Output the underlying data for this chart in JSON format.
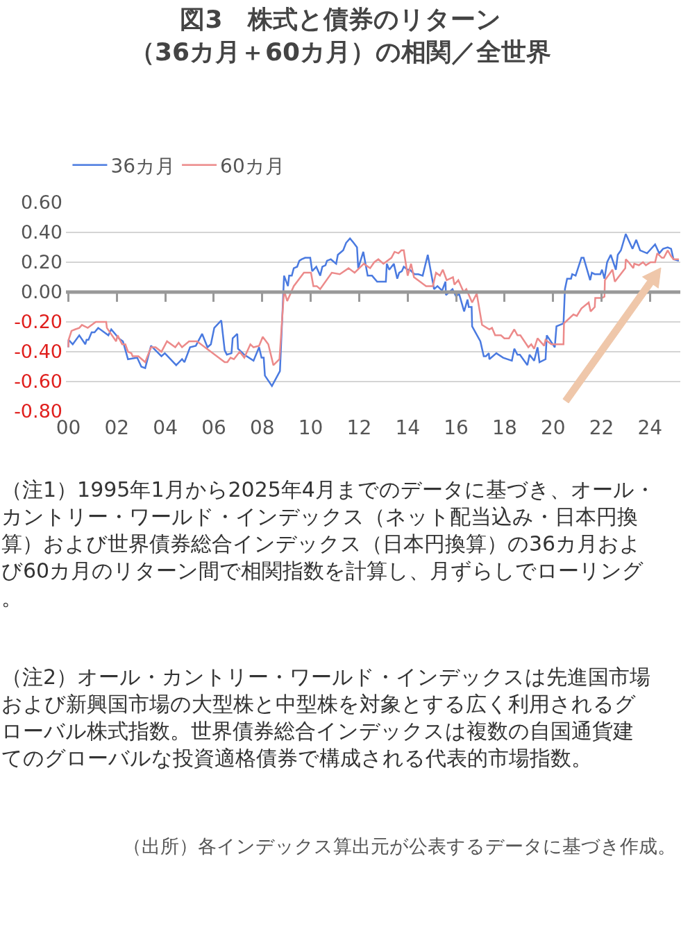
{
  "chart_data": {
    "type": "line",
    "title": "図3　株式と債券のリターン",
    "subtitle": "（36カ月＋60カ月）の相関／全世界",
    "xlim": [
      1999.9,
      2025.25
    ],
    "xticks": [
      {
        "value": 2000,
        "label": "00"
      },
      {
        "value": 2002,
        "label": "02"
      },
      {
        "value": 2004,
        "label": "04"
      },
      {
        "value": 2006,
        "label": "06"
      },
      {
        "value": 2008,
        "label": "08"
      },
      {
        "value": 2010,
        "label": "10"
      },
      {
        "value": 2012,
        "label": "12"
      },
      {
        "value": 2014,
        "label": "14"
      },
      {
        "value": 2016,
        "label": "16"
      },
      {
        "value": 2018,
        "label": "18"
      },
      {
        "value": 2020,
        "label": "20"
      },
      {
        "value": 2022,
        "label": "22"
      },
      {
        "value": 2024,
        "label": "24"
      }
    ],
    "ylim": [
      -0.8,
      0.6
    ],
    "yticks": [
      {
        "value": 0.6,
        "label": "0.60"
      },
      {
        "value": 0.4,
        "label": "0.40"
      },
      {
        "value": 0.2,
        "label": "0.20"
      },
      {
        "value": 0,
        "label": "0.00"
      },
      {
        "value": -0.2,
        "label": "-0.20"
      },
      {
        "value": -0.4,
        "label": "-0.40"
      },
      {
        "value": -0.6,
        "label": "-0.60"
      },
      {
        "value": -0.8,
        "label": "-0.80"
      }
    ],
    "grid": "y",
    "legend": "top left",
    "marker": "none",
    "line_style": "solid",
    "ref_lines": [
      {
        "axis": "y",
        "value": 0,
        "color": "#999999"
      }
    ],
    "series": [
      {
        "name": "36カ月",
        "color": "#4a7ae0",
        "x": [
          2000.0,
          2000.01,
          2000.18,
          2000.45,
          2000.7,
          2000.75,
          2000.83,
          2000.96,
          2001.08,
          2001.23,
          2001.65,
          2001.77,
          2002.08,
          2002.25,
          2002.46,
          2002.84,
          2003.01,
          2003.17,
          2003.41,
          2003.84,
          2003.98,
          2004.45,
          2004.69,
          2004.79,
          2005.02,
          2005.26,
          2005.52,
          2005.74,
          2005.88,
          2006.02,
          2006.31,
          2006.45,
          2006.54,
          2006.73,
          2006.78,
          2006.97,
          2007.0,
          2007.26,
          2007.64,
          2007.87,
          2007.97,
          2008.06,
          2008.11,
          2008.4,
          2008.73,
          2008.9,
          2009.06,
          2009.11,
          2009.22,
          2009.3,
          2009.44,
          2009.53,
          2009.63,
          2009.77,
          2009.98,
          2010.06,
          2010.23,
          2010.39,
          2010.48,
          2010.61,
          2010.67,
          2010.83,
          2011.05,
          2011.12,
          2011.34,
          2011.46,
          2011.62,
          2011.77,
          2011.91,
          2011.96,
          2012.17,
          2012.35,
          2012.53,
          2012.74,
          2013.1,
          2013.14,
          2013.24,
          2013.43,
          2013.57,
          2013.65,
          2013.76,
          2013.84,
          2014.0,
          2014.09,
          2014.28,
          2014.44,
          2014.62,
          2014.83,
          2015.09,
          2015.23,
          2015.42,
          2015.56,
          2015.58,
          2015.85,
          2016.0,
          2016.12,
          2016.33,
          2016.47,
          2016.52,
          2016.64,
          2016.66,
          2017.0,
          2017.14,
          2017.23,
          2017.35,
          2017.37,
          2017.66,
          2017.94,
          2018.3,
          2018.4,
          2018.53,
          2018.63,
          2018.94,
          2019.03,
          2019.22,
          2019.36,
          2019.44,
          2019.69,
          2019.74,
          2020.07,
          2020.14,
          2020.43,
          2020.49,
          2020.58,
          2020.74,
          2020.79,
          2020.93,
          2021.17,
          2021.26,
          2021.53,
          2021.6,
          2021.72,
          2021.95,
          2022.02,
          2022.12,
          2022.23,
          2022.38,
          2022.59,
          2022.67,
          2022.8,
          2023.0,
          2023.28,
          2023.43,
          2023.59,
          2023.88,
          2024.21,
          2024.38,
          2024.54,
          2024.73,
          2024.87,
          2024.97,
          2025.19
        ],
        "values": [
          -0.37,
          -0.32,
          -0.35,
          -0.29,
          -0.35,
          -0.32,
          -0.32,
          -0.27,
          -0.27,
          -0.24,
          -0.29,
          -0.25,
          -0.31,
          -0.33,
          -0.45,
          -0.44,
          -0.5,
          -0.51,
          -0.36,
          -0.43,
          -0.41,
          -0.49,
          -0.45,
          -0.47,
          -0.37,
          -0.36,
          -0.28,
          -0.37,
          -0.35,
          -0.24,
          -0.19,
          -0.39,
          -0.42,
          -0.41,
          -0.31,
          -0.28,
          -0.38,
          -0.42,
          -0.46,
          -0.37,
          -0.44,
          -0.44,
          -0.56,
          -0.63,
          -0.53,
          0.11,
          0.04,
          0.11,
          0.11,
          0.16,
          0.17,
          0.21,
          0.22,
          0.23,
          0.23,
          0.14,
          0.17,
          0.11,
          0.17,
          0.18,
          0.21,
          0.22,
          0.19,
          0.25,
          0.28,
          0.33,
          0.36,
          0.33,
          0.3,
          0.16,
          0.27,
          0.11,
          0.11,
          0.07,
          0.07,
          0.19,
          0.15,
          0.19,
          0.09,
          0.13,
          0.14,
          0.17,
          0.15,
          0.15,
          0.12,
          0.12,
          0.11,
          0.25,
          0.02,
          0.04,
          0.01,
          0.07,
          -0.02,
          0.02,
          -0.03,
          -0.01,
          -0.13,
          -0.05,
          -0.1,
          -0.1,
          -0.23,
          -0.33,
          -0.43,
          -0.43,
          -0.41,
          -0.45,
          -0.41,
          -0.44,
          -0.46,
          -0.38,
          -0.42,
          -0.42,
          -0.49,
          -0.42,
          -0.46,
          -0.37,
          -0.47,
          -0.45,
          -0.29,
          -0.37,
          -0.23,
          -0.21,
          0.02,
          0.09,
          0.09,
          0.12,
          0.11,
          0.23,
          0.23,
          0.08,
          0.13,
          0.12,
          0.12,
          0.15,
          0.09,
          0.2,
          0.25,
          0.15,
          0.25,
          0.28,
          0.39,
          0.29,
          0.35,
          0.28,
          0.26,
          0.32,
          0.26,
          0.29,
          0.3,
          0.29,
          0.22,
          0.21
        ]
      },
      {
        "name": "60カ月",
        "color": "#ec8a8a",
        "x": [
          2000.0,
          2000.01,
          2000.13,
          2000.28,
          2000.45,
          2000.56,
          2000.8,
          2001.13,
          2001.56,
          2001.59,
          2001.97,
          2002.03,
          2002.22,
          2002.35,
          2002.46,
          2002.6,
          2002.65,
          2002.89,
          2003.17,
          2003.41,
          2003.6,
          2003.84,
          2004.07,
          2004.41,
          2004.55,
          2004.69,
          2004.98,
          2005.31,
          2006.45,
          2006.56,
          2006.69,
          2006.83,
          2007.07,
          2007.26,
          2007.51,
          2007.64,
          2007.87,
          2008.02,
          2008.25,
          2008.46,
          2008.71,
          2008.9,
          2009.03,
          2009.3,
          2009.72,
          2010.01,
          2010.11,
          2010.25,
          2010.39,
          2010.87,
          2011.2,
          2011.56,
          2011.81,
          2012.19,
          2012.45,
          2012.62,
          2012.79,
          2013.0,
          2013.33,
          2013.46,
          2013.62,
          2013.74,
          2013.84,
          2014.0,
          2014.14,
          2014.26,
          2014.76,
          2015.04,
          2015.17,
          2015.33,
          2015.45,
          2015.61,
          2015.87,
          2015.93,
          2016.09,
          2016.31,
          2016.42,
          2016.66,
          2016.85,
          2017.07,
          2017.37,
          2017.48,
          2017.61,
          2017.85,
          2017.99,
          2018.18,
          2018.4,
          2018.53,
          2018.65,
          2018.98,
          2019.1,
          2019.22,
          2019.36,
          2019.63,
          2019.69,
          2019.93,
          2020.43,
          2020.45,
          2020.84,
          2020.98,
          2021.17,
          2021.47,
          2021.55,
          2021.72,
          2021.74,
          2022.02,
          2022.12,
          2022.14,
          2022.45,
          2022.55,
          2022.98,
          2023.0,
          2023.12,
          2023.31,
          2023.35,
          2023.54,
          2023.71,
          2023.83,
          2024.02,
          2024.21,
          2024.3,
          2024.49,
          2024.57,
          2024.73,
          2024.87,
          2024.97,
          2025.19
        ],
        "values": [
          -0.37,
          -0.32,
          -0.26,
          -0.25,
          -0.24,
          -0.22,
          -0.24,
          -0.2,
          -0.2,
          -0.24,
          -0.33,
          -0.29,
          -0.35,
          -0.35,
          -0.4,
          -0.41,
          -0.43,
          -0.43,
          -0.47,
          -0.37,
          -0.37,
          -0.4,
          -0.33,
          -0.37,
          -0.34,
          -0.37,
          -0.33,
          -0.33,
          -0.47,
          -0.47,
          -0.44,
          -0.45,
          -0.4,
          -0.44,
          -0.35,
          -0.37,
          -0.36,
          -0.3,
          -0.35,
          -0.49,
          -0.45,
          0.01,
          -0.06,
          0.04,
          0.13,
          0.13,
          0.04,
          0.04,
          0.02,
          0.13,
          0.12,
          0.16,
          0.13,
          0.19,
          0.16,
          0.2,
          0.22,
          0.19,
          0.23,
          0.27,
          0.26,
          0.28,
          0.28,
          0.11,
          0.19,
          0.1,
          0.04,
          0.04,
          0.13,
          0.11,
          0.15,
          0.08,
          0.1,
          0.05,
          0.08,
          0.0,
          0.02,
          -0.07,
          -0.01,
          -0.22,
          -0.25,
          -0.24,
          -0.29,
          -0.29,
          -0.31,
          -0.31,
          -0.25,
          -0.29,
          -0.29,
          -0.37,
          -0.35,
          -0.38,
          -0.31,
          -0.36,
          -0.32,
          -0.35,
          -0.35,
          -0.21,
          -0.15,
          -0.16,
          -0.11,
          -0.07,
          -0.13,
          -0.1,
          -0.04,
          -0.04,
          -0.03,
          0.08,
          0.15,
          0.07,
          0.16,
          0.22,
          0.2,
          0.16,
          0.19,
          0.18,
          0.2,
          0.18,
          0.2,
          0.2,
          0.26,
          0.23,
          0.23,
          0.28,
          0.24,
          0.22,
          0.22
        ]
      }
    ],
    "annotations": [
      "（注1）1995年1月から2025年4月までのデータに基づき、オール・カントリー・ワールド・インデックス（ネット配当込み・日本円換算）および世界債券総合インデックス（日本円換算）の36カ月および60カ月のリターン間で相関指数を計算し、月ずらしでローリング。",
      "（注2）オール・カントリー・ワールド・インデックスは先進国市場および新興国市場の大型株と中型株を対象とする広く利用されるグローバル株式指数。世界債券総合インデックスは複数の自国通貨建てのグローバルな投資適格債券で構成される代表的市場指数。",
      "（出所）各インデックス算出元が公表するデータに基づき作成。"
    ]
  }
}
